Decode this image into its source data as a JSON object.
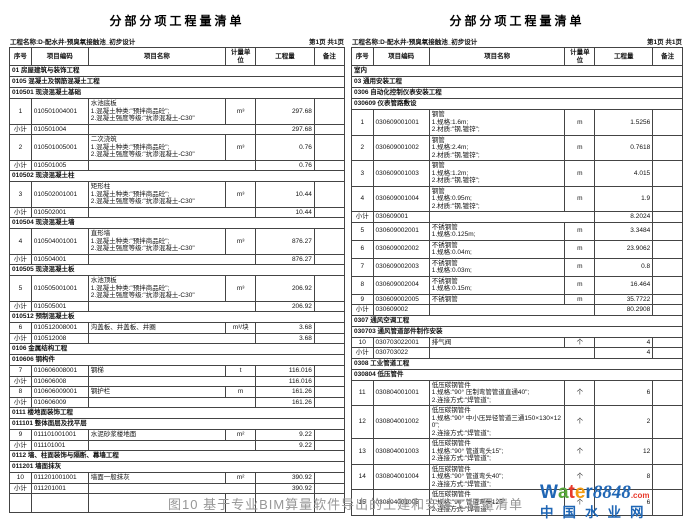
{
  "page": {
    "caption": "图10 基于专业BIM算量软件导出的土建和安装工程量清单"
  },
  "logo": {
    "word_letters": [
      {
        "ch": "W",
        "color": "#1f66b5"
      },
      {
        "ch": "a",
        "color": "#56a839"
      },
      {
        "ch": "t",
        "color": "#e8392b"
      },
      {
        "ch": "e",
        "color": "#f49c12"
      },
      {
        "ch": "r",
        "color": "#1f66b5"
      }
    ],
    "numbers": "8848",
    "numbers_color": "#1f66b5",
    "dotcom": ".com",
    "dotcom_color": "#e8392b",
    "subtitle": "中国水业网",
    "subtitle_color": "#1f66b5"
  },
  "subtotal_label": "小计",
  "tables": [
    {
      "title": "分部分项工程量清单",
      "project": "工程名称:D-配水井-预臭氧接触池_初步设计",
      "page_info": "第1页 共1页",
      "columns": [
        "序号",
        "项目编码",
        "项目名称",
        "计量单位",
        "工程量",
        "备注"
      ],
      "rows": [
        {
          "type": "sec",
          "text": "01 房屋建筑与装饰工程"
        },
        {
          "type": "sec",
          "text": "0105 混凝土及钢筋混凝土工程"
        },
        {
          "type": "sec",
          "text": "010501 现浇混凝土基础"
        },
        {
          "type": "item",
          "no": "1",
          "code": "010501004001",
          "name": "水池底板\n1.混凝土种类:\"预拌商品砼\";\n2.混凝土强度等级:\"抗渗混凝土-C30\"",
          "unit": "m³",
          "qty": "297.68"
        },
        {
          "type": "sub",
          "code": "010501004",
          "qty": "297.68"
        },
        {
          "type": "item",
          "no": "2",
          "code": "010501005001",
          "name": "二次浇筑\n1.混凝土种类:\"预拌商品砼\";\n2.混凝土强度等级:\"抗渗混凝土-C30\"",
          "unit": "m³",
          "qty": "0.76"
        },
        {
          "type": "sub",
          "code": "010501005",
          "qty": "0.76"
        },
        {
          "type": "sec",
          "text": "010502 现浇混凝土柱"
        },
        {
          "type": "item",
          "no": "3",
          "code": "010502001001",
          "name": "矩形柱\n1.混凝土种类:\"预拌商品砼\";\n2.混凝土强度等级:\"抗渗混凝土-C30\"",
          "unit": "m³",
          "qty": "10.44"
        },
        {
          "type": "sub",
          "code": "010502001",
          "qty": "10.44"
        },
        {
          "type": "sec",
          "text": "010504 现浇混凝土墙"
        },
        {
          "type": "item",
          "no": "4",
          "code": "010504001001",
          "name": "直形墙\n1.混凝土种类:\"预拌商品砼\";\n2.混凝土强度等级:\"抗渗混凝土-C30\"",
          "unit": "m³",
          "qty": "876.27"
        },
        {
          "type": "sub",
          "code": "010504001",
          "qty": "876.27"
        },
        {
          "type": "sec",
          "text": "010505 现浇混凝土板"
        },
        {
          "type": "item",
          "no": "5",
          "code": "010505001001",
          "name": "水池顶板\n1.混凝土种类:\"预拌商品砼\";\n2.混凝土强度等级:\"抗渗混凝土-C30\"",
          "unit": "m³",
          "qty": "206.92"
        },
        {
          "type": "sub",
          "code": "010505001",
          "qty": "206.92"
        },
        {
          "type": "sec",
          "text": "010512 预制混凝土板"
        },
        {
          "type": "item",
          "no": "6",
          "code": "010512008001",
          "name": "沟盖板、井盖板、井圈",
          "unit": "m³/块",
          "qty": "3.68"
        },
        {
          "type": "sub",
          "code": "010512008",
          "qty": "3.68"
        },
        {
          "type": "sec",
          "text": "0106 金属结构工程"
        },
        {
          "type": "sec",
          "text": "010606 钢构件"
        },
        {
          "type": "item",
          "no": "7",
          "code": "010606008001",
          "name": "钢梯",
          "unit": "t",
          "qty": "116.016"
        },
        {
          "type": "sub",
          "code": "010606008",
          "qty": "116.016"
        },
        {
          "type": "item",
          "no": "8",
          "code": "010606009001",
          "name": "钢护栏",
          "unit": "m",
          "qty": "161.26"
        },
        {
          "type": "sub",
          "code": "010606009",
          "qty": "161.26"
        },
        {
          "type": "sec",
          "text": "0111 楼地面装饰工程"
        },
        {
          "type": "sec",
          "text": "011101 整体面层及找平层"
        },
        {
          "type": "item",
          "no": "9",
          "code": "011101001001",
          "name": "水泥砂浆楼地面",
          "unit": "m²",
          "qty": "9.22"
        },
        {
          "type": "sub",
          "code": "011101001",
          "qty": "9.22"
        },
        {
          "type": "sec",
          "text": "0112 墙、柱面装饰与隔断、幕墙工程"
        },
        {
          "type": "sec",
          "text": "011201 墙面抹灰"
        },
        {
          "type": "item",
          "no": "10",
          "code": "011201001001",
          "name": "墙面一般抹灰",
          "unit": "m²",
          "qty": "390.92"
        },
        {
          "type": "sub",
          "code": "011201001",
          "qty": "390.92"
        },
        {
          "type": "empty"
        }
      ]
    },
    {
      "title": "分部分项工程量清单",
      "project": "工程名称:D-配水井-预臭氧接触池_初步设计",
      "page_info": "第1页 共1页",
      "columns": [
        "序号",
        "项目编码",
        "项目名称",
        "计量单位",
        "工程量",
        "备注"
      ],
      "rows": [
        {
          "type": "sec",
          "text": "室内"
        },
        {
          "type": "sec",
          "text": "03 通用安装工程"
        },
        {
          "type": "sec",
          "text": "0306 自动化控制仪表安装工程"
        },
        {
          "type": "sec",
          "text": "030609 仪表管路敷设"
        },
        {
          "type": "item",
          "no": "1",
          "code": "030609001001",
          "name": "钢管\n1.规格:1.6m;\n2.材质:\"钢,镀锌\";",
          "unit": "m",
          "qty": "1.5256"
        },
        {
          "type": "item",
          "no": "2",
          "code": "030609001002",
          "name": "钢管\n1.规格:2.4m;\n2.材质:\"钢,镀锌\";",
          "unit": "m",
          "qty": "0.7618"
        },
        {
          "type": "item",
          "no": "3",
          "code": "030609001003",
          "name": "钢管\n1.规格:1.2m;\n2.材质:\"钢,镀锌\";",
          "unit": "m",
          "qty": "4.015"
        },
        {
          "type": "item",
          "no": "4",
          "code": "030609001004",
          "name": "钢管\n1.规格:0.95m;\n2.材质:\"钢,镀锌\";",
          "unit": "m",
          "qty": "1.9"
        },
        {
          "type": "sub",
          "code": "030609001",
          "qty": "8.2024"
        },
        {
          "type": "item",
          "no": "5",
          "code": "030609002001",
          "name": "不锈钢管\n1.规格:0.125m;",
          "unit": "m",
          "qty": "3.3484"
        },
        {
          "type": "item",
          "no": "6",
          "code": "030609002002",
          "name": "不锈钢管\n1.规格:0.04m;",
          "unit": "m",
          "qty": "23.9062"
        },
        {
          "type": "item",
          "no": "7",
          "code": "030609002003",
          "name": "不锈钢管\n1.规格:0.03m;",
          "unit": "m",
          "qty": "0.8"
        },
        {
          "type": "item",
          "no": "8",
          "code": "030609002004",
          "name": "不锈钢管\n1.规格:0.15m;",
          "unit": "m",
          "qty": "16.464"
        },
        {
          "type": "item",
          "no": "9",
          "code": "030609002005",
          "name": "不锈钢管",
          "unit": "m",
          "qty": "35.7722"
        },
        {
          "type": "sub",
          "code": "030609002",
          "qty": "80.2908"
        },
        {
          "type": "sec",
          "text": "0307 通风空调工程"
        },
        {
          "type": "sec",
          "text": "030703 通风管道部件制作安装"
        },
        {
          "type": "item",
          "no": "10",
          "code": "030703022001",
          "name": "排气阀",
          "unit": "个",
          "qty": "4"
        },
        {
          "type": "sub",
          "code": "030703022",
          "qty": "4"
        },
        {
          "type": "sec",
          "text": "0308 工业管道工程"
        },
        {
          "type": "sec",
          "text": "030804 低压管件"
        },
        {
          "type": "item",
          "no": "11",
          "code": "030804001001",
          "name": "低压碳钢管件\n1.规格:\"90° 压制弯管管道直通40\";\n2.连接方式:\"焊管道\";",
          "unit": "个",
          "qty": "6"
        },
        {
          "type": "item",
          "no": "12",
          "code": "030804001002",
          "name": "低压碳钢管件\n1.规格:\"90° 中小压异径管道三通150×130×120\";\n2.连接方式:\"焊管道\";",
          "unit": "个",
          "qty": "2"
        },
        {
          "type": "item",
          "no": "13",
          "code": "030804001003",
          "name": "低压碳钢管件\n1.规格:\"90° 管道弯头15\";\n2.连接方式:\"焊管道\";",
          "unit": "个",
          "qty": "12"
        },
        {
          "type": "item",
          "no": "14",
          "code": "030804001004",
          "name": "低压碳钢管件\n1.规格:\"90° 管道弯头40\";\n2.连接方式:\"焊管道\";",
          "unit": "个",
          "qty": "8"
        },
        {
          "type": "item",
          "no": "15",
          "code": "030804001005",
          "name": "低压碳钢管件\n1.规格:\"90° 管道弯头125\";\n2.连接方式:\"焊管道\";",
          "unit": "个",
          "qty": "6"
        }
      ]
    }
  ]
}
